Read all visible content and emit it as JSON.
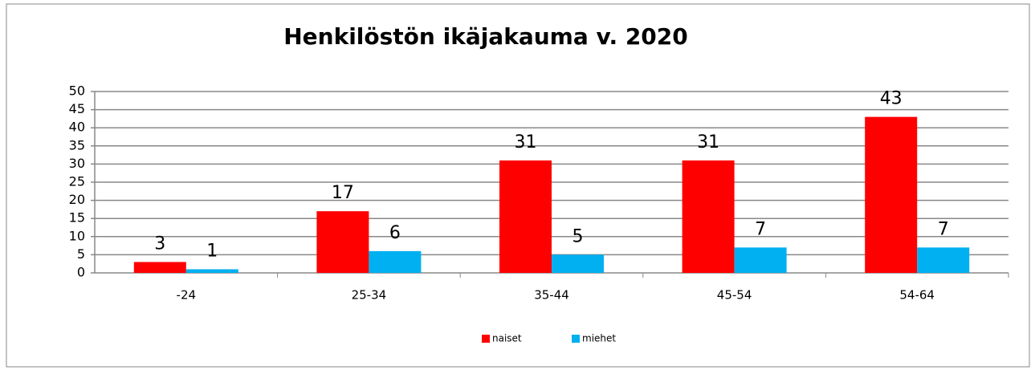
{
  "chart_data": {
    "type": "bar",
    "title": "Henkilöstön ikäjakauma v. 2020",
    "categories": [
      "-24",
      "25-34",
      "35-44",
      "45-54",
      "54-64"
    ],
    "series": [
      {
        "name": "naiset",
        "color": "#ff0000",
        "values": [
          3,
          17,
          31,
          31,
          43
        ]
      },
      {
        "name": "miehet",
        "color": "#00b0f0",
        "values": [
          1,
          6,
          5,
          7,
          7
        ]
      }
    ],
    "ylim": [
      0,
      50
    ],
    "yticks": [
      0,
      5,
      10,
      15,
      20,
      25,
      30,
      35,
      40,
      45,
      50
    ],
    "grid": true,
    "legend": "bottom"
  }
}
